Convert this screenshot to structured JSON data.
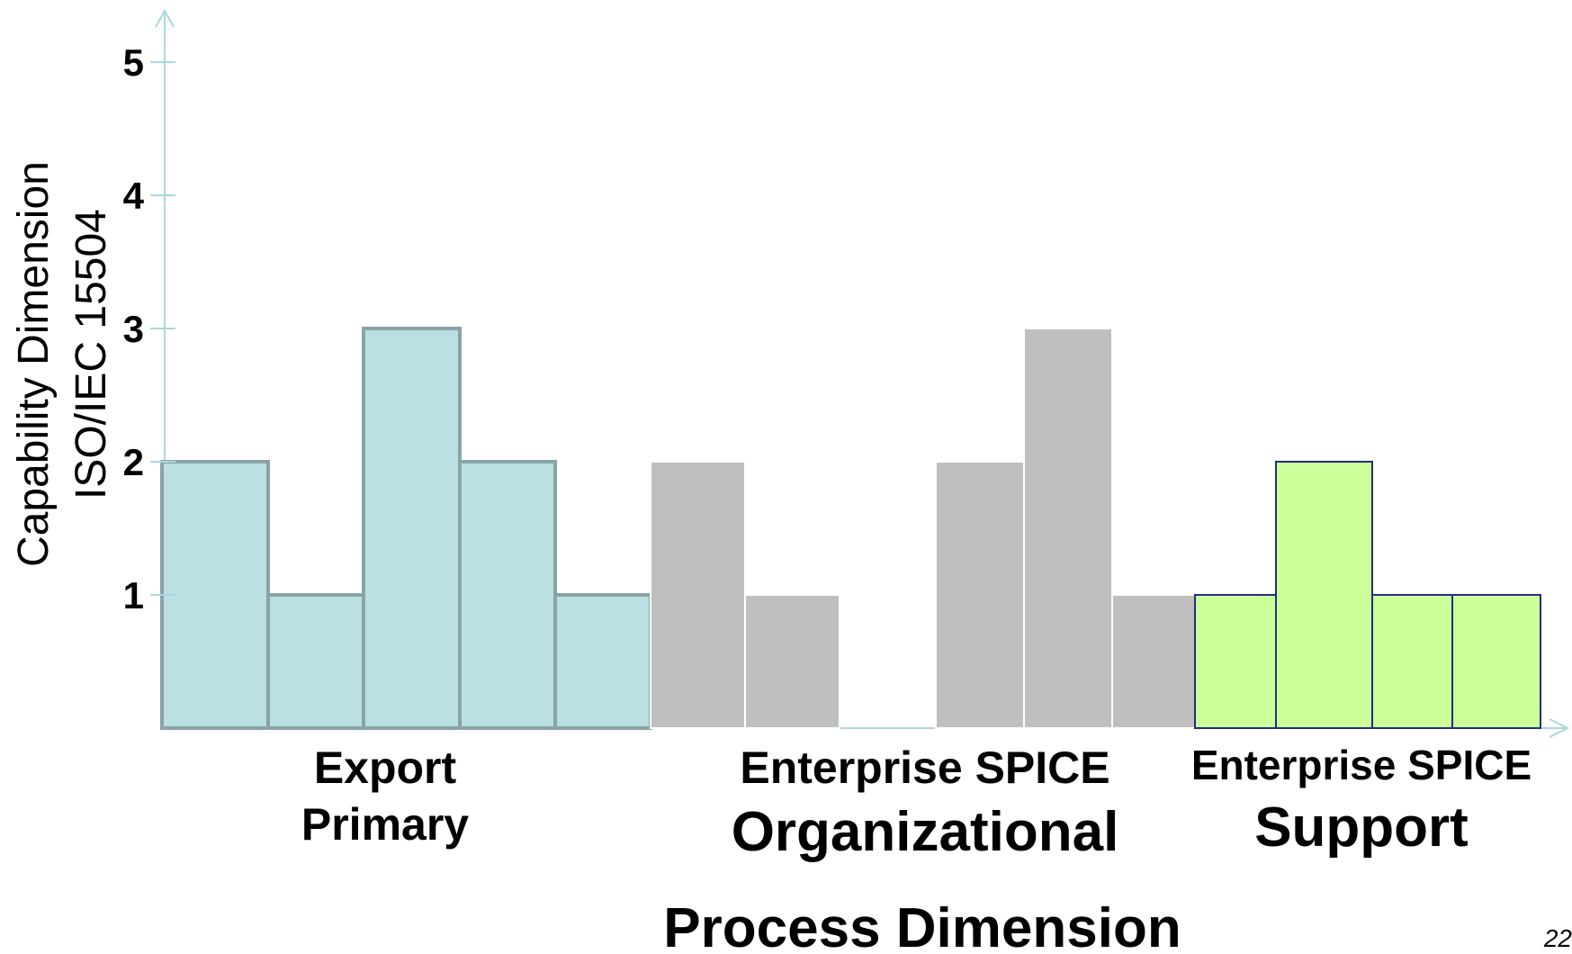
{
  "chart_data": {
    "type": "bar",
    "ylabel": [
      "Capability Dimension",
      "ISO/IEC 15504"
    ],
    "xlabel": "Process Dimension",
    "yticks": [
      1,
      2,
      3,
      4,
      5
    ],
    "ylim": [
      0,
      5
    ],
    "groups": [
      {
        "label_lines": [
          "Export",
          "Primary"
        ],
        "fill": "#bbe0e3",
        "stroke": "#8aa3a6",
        "values": [
          2,
          1,
          3,
          2,
          1
        ]
      },
      {
        "label_lines": [
          "Enterprise SPICE",
          "Organizational"
        ],
        "fill": "#bfbfbf",
        "stroke": "#ffffff",
        "values": [
          2,
          1,
          0,
          2,
          3,
          1
        ]
      },
      {
        "label_lines": [
          "Enterprise SPICE",
          "Support"
        ],
        "fill": "#ccff99",
        "stroke": "#1f2f80",
        "values": [
          1,
          2,
          1,
          1
        ]
      }
    ]
  },
  "page_number": "22",
  "colors": {
    "axis": "#a8d8df"
  }
}
